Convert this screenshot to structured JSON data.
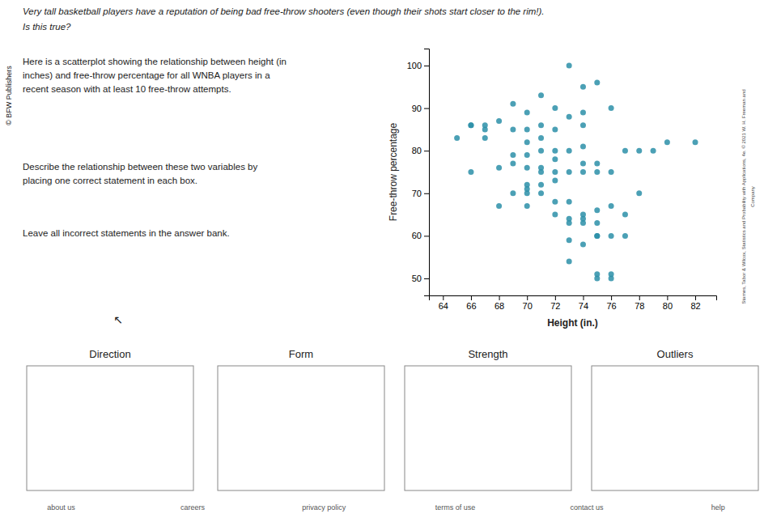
{
  "chart_data": {
    "type": "scatter",
    "title": "Very tall basketball players have a reputation of being bad free-throw shooters (even though their shots start closer to the rim!).",
    "subtitle": "Is this true?",
    "x": [
      65,
      66,
      66,
      66,
      67,
      67,
      67,
      68,
      68,
      68,
      69,
      69,
      69,
      69,
      69,
      70,
      70,
      70,
      70,
      70,
      70,
      70,
      70,
      70,
      71,
      71,
      71,
      71,
      71,
      71,
      71,
      71,
      72,
      72,
      72,
      72,
      72,
      72,
      72,
      72,
      73,
      73,
      73,
      73,
      73,
      73,
      73,
      73,
      73,
      74,
      74,
      74,
      74,
      74,
      74,
      74,
      74,
      74,
      74,
      75,
      75,
      75,
      75,
      75,
      75,
      75,
      75,
      75,
      76,
      76,
      76,
      76,
      76,
      76,
      77,
      77,
      77,
      78,
      78,
      79,
      80,
      82
    ],
    "values": [
      83,
      86,
      86,
      75,
      83,
      85,
      86,
      67,
      76,
      87,
      70,
      77,
      79,
      85,
      91,
      67,
      70,
      71,
      72,
      76,
      79,
      82,
      85,
      89,
      70,
      72,
      75,
      76,
      80,
      83,
      86,
      93,
      65,
      68,
      73,
      75,
      78,
      80,
      85,
      90,
      54,
      59,
      63,
      64,
      68,
      75,
      80,
      88,
      100,
      58,
      63,
      64,
      65,
      75,
      77,
      81,
      86,
      89,
      95,
      50,
      51,
      60,
      60,
      63,
      66,
      75,
      77,
      96,
      50,
      51,
      60,
      67,
      75,
      90,
      60,
      65,
      80,
      70,
      80,
      80,
      82,
      82
    ],
    "color": "#2b8fa8",
    "xlabel": "Height (in.)",
    "ylabel": "Free-throw percentage",
    "xlim": [
      63,
      83.5
    ],
    "ylim": [
      46,
      104
    ],
    "xticks": [
      64,
      66,
      68,
      70,
      72,
      74,
      76,
      78,
      80,
      82
    ],
    "yticks": [
      50,
      60,
      70,
      80,
      90,
      100
    ],
    "grid": false
  },
  "page": {
    "paragraphs": [
      "Here is a scatterplot showing the relationship between height (in\ninches) and free-throw percentage for all WNBA players in a\nrecent season with at least 10 free-throw attempts.",
      "Describe the relationship between these two variables by\nplacing one correct statement in each box.",
      "Leave all incorrect statements in the answer bank."
    ],
    "publisher": "© BFW Publishers",
    "cursor_hint": "↖",
    "box_labels": [
      "Direction",
      "Form",
      "Strength",
      "Outliers"
    ],
    "footer_items": [
      "about us",
      "careers",
      "privacy policy",
      "terms of use",
      "contact us",
      "help"
    ],
    "side_credit": [
      "Starnes, Tabor & Wilcox, Statistics and Probability with Applications, 4e. © 2021 W. H. Freeman and",
      "Company"
    ]
  }
}
